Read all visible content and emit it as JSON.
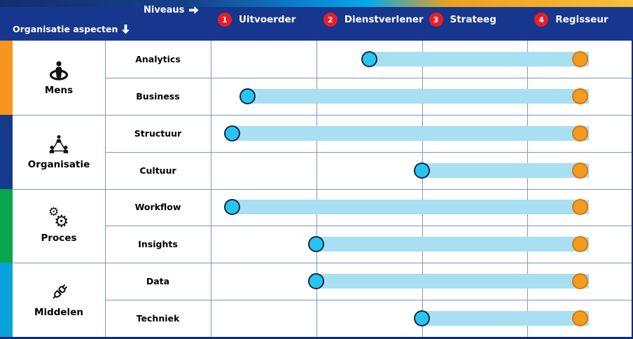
{
  "header": {
    "niveaus_label": "Niveaus",
    "aspects_label": "Organisatie aspecten",
    "levels": [
      {
        "num": "1",
        "label": "Uitvoerder"
      },
      {
        "num": "2",
        "label": "Dienstverlener"
      },
      {
        "num": "3",
        "label": "Strateeg"
      },
      {
        "num": "4",
        "label": "Regisseur"
      }
    ]
  },
  "colors": {
    "header_bg": "#17368e",
    "grid_line": "#7d94cc",
    "border_dark": "#122a75",
    "badge_red": "#ed1c24",
    "track": "#a8dff2",
    "current_fill": "#29c5f2",
    "current_border": "#1c2742",
    "target_fill": "#f59b1e",
    "target_border": "#d07a12"
  },
  "groups": [
    {
      "label": "Mens",
      "icon": "person-beacon-icon",
      "color": "#f7941e",
      "rows": [
        {
          "label": "Analytics",
          "current": 2.0,
          "target": 4.0
        },
        {
          "label": "Business",
          "current": 0.85,
          "target": 4.0
        }
      ]
    },
    {
      "label": "Organisatie",
      "icon": "org-network-icon",
      "color": "#143a8c",
      "rows": [
        {
          "label": "Structuur",
          "current": 0.7,
          "target": 4.0
        },
        {
          "label": "Cultuur",
          "current": 2.5,
          "target": 4.0
        }
      ]
    },
    {
      "label": "Proces",
      "icon": "gears-icon",
      "color": "#0aa64d",
      "rows": [
        {
          "label": "Workflow",
          "current": 0.7,
          "target": 4.0
        },
        {
          "label": "Insights",
          "current": 1.5,
          "target": 4.0
        }
      ]
    },
    {
      "label": "Middelen",
      "icon": "plug-icon",
      "color": "#09a2d9",
      "rows": [
        {
          "label": "Data",
          "current": 1.5,
          "target": 4.0
        },
        {
          "label": "Techniek",
          "current": 2.5,
          "target": 4.0
        }
      ]
    }
  ],
  "chart_data": {
    "type": "scatter",
    "title": "",
    "categories": [
      "Analytics",
      "Business",
      "Structuur",
      "Cultuur",
      "Workflow",
      "Insights",
      "Data",
      "Techniek"
    ],
    "category_groups": [
      "Mens",
      "Mens",
      "Organisatie",
      "Organisatie",
      "Proces",
      "Proces",
      "Middelen",
      "Middelen"
    ],
    "x_axis_levels": [
      "1 Uitvoerder",
      "2 Dienstverlener",
      "3 Strateeg",
      "4 Regisseur"
    ],
    "series": [
      {
        "name": "current-level",
        "values": [
          2.0,
          0.85,
          0.7,
          2.5,
          0.7,
          1.5,
          1.5,
          2.5
        ]
      },
      {
        "name": "target-level",
        "values": [
          4.0,
          4.0,
          4.0,
          4.0,
          4.0,
          4.0,
          4.0,
          4.0
        ]
      }
    ],
    "xlim": [
      0.5,
      4.5
    ],
    "legend": "off",
    "grid": "on"
  }
}
